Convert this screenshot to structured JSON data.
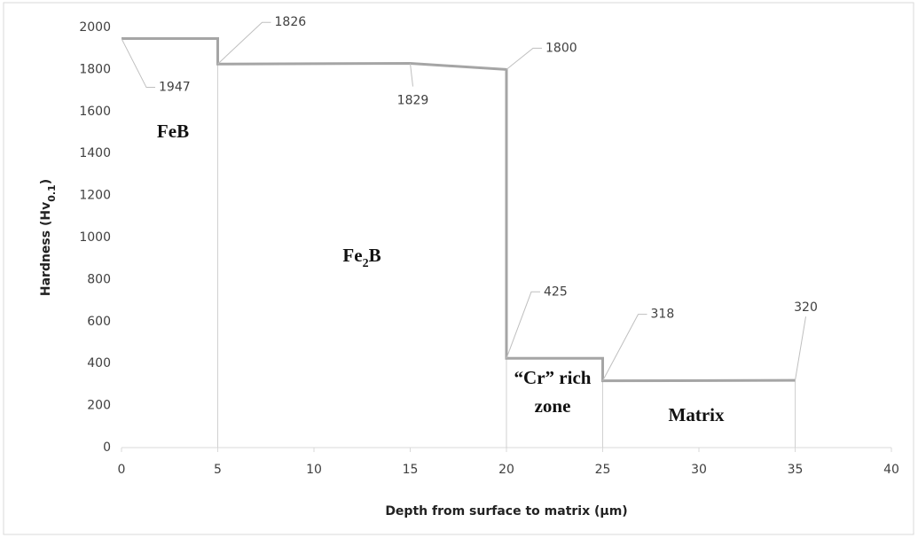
{
  "chart_data": {
    "type": "line",
    "ylabel": [
      "Hardness (Hv",
      "0.1",
      ")"
    ],
    "xlabel": "Depth from surface to matrix (µm)",
    "x": [
      0,
      5,
      5,
      15,
      20,
      20,
      25,
      25,
      35
    ],
    "series": [
      {
        "color": "#a5a5a5",
        "values": [
          1947,
          1947,
          1826,
          1829,
          1800,
          425,
          425,
          318,
          320
        ],
        "data_labels": [
          1947,
          null,
          1826,
          1829,
          1800,
          425,
          null,
          318,
          320
        ]
      }
    ],
    "drop_lines_at": [
      5,
      20,
      25,
      35
    ],
    "xlim": [
      0,
      40
    ],
    "xticks": [
      0,
      5,
      10,
      15,
      20,
      25,
      30,
      35,
      40
    ],
    "ylim": [
      0,
      2000
    ],
    "yticks": [
      0,
      200,
      400,
      600,
      800,
      1000,
      1200,
      1400,
      1600,
      1800,
      2000
    ],
    "grid": false,
    "annotations": [
      [
        "FeB"
      ],
      [
        "Fe",
        "2",
        "B"
      ],
      [
        "“Cr” rich",
        "zone"
      ],
      [
        "Matrix"
      ]
    ]
  }
}
